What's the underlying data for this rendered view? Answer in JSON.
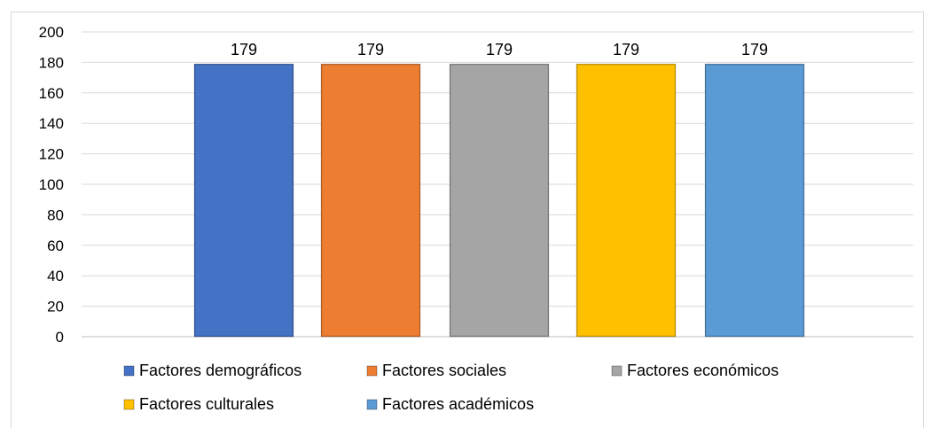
{
  "chart_data": {
    "type": "bar",
    "title": "",
    "xlabel": "",
    "ylabel": "",
    "ylim": [
      0,
      200
    ],
    "yticks": [
      0,
      20,
      40,
      60,
      80,
      100,
      120,
      140,
      160,
      180,
      200
    ],
    "grid": true,
    "legend_position": "bottom",
    "series": [
      {
        "name": "Factores demográficos",
        "value": 179,
        "color": "#4472C4"
      },
      {
        "name": "Factores sociales",
        "value": 179,
        "color": "#ED7D31"
      },
      {
        "name": "Factores económicos",
        "value": 179,
        "color": "#A5A5A5"
      },
      {
        "name": "Factores culturales",
        "value": 179,
        "color": "#FFC000"
      },
      {
        "name": "Factores académicos",
        "value": 179,
        "color": "#5B9BD5"
      }
    ]
  }
}
